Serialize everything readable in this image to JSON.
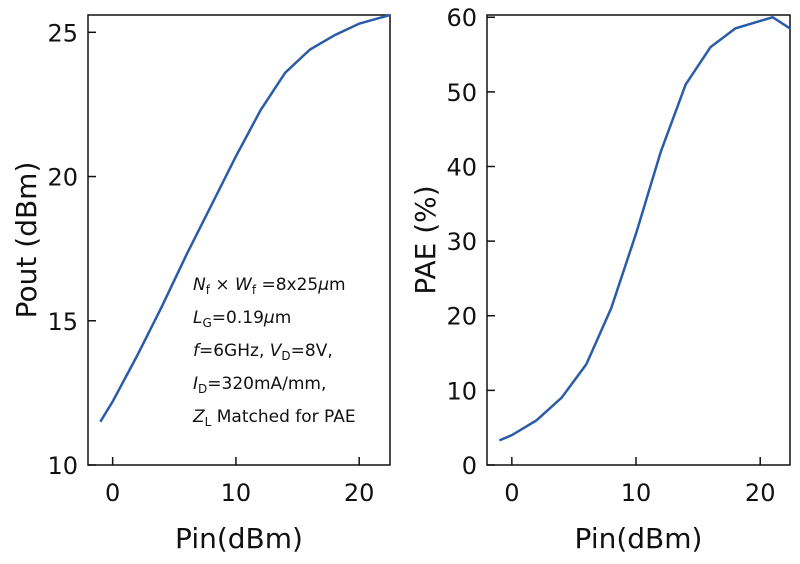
{
  "chart_data": [
    {
      "type": "line",
      "xlabel": "Pin(dBm)",
      "ylabel": "Pout (dBm)",
      "xlim": [
        -2,
        22.5
      ],
      "ylim": [
        10,
        25.6
      ],
      "xticks": [
        0,
        10,
        20
      ],
      "yticks": [
        10,
        15,
        20,
        25
      ],
      "series": [
        {
          "color": "#2a5ca8",
          "x": [
            -1,
            0,
            2,
            4,
            6,
            8,
            10,
            12,
            14,
            16,
            18,
            20,
            22.5
          ],
          "values": [
            11.5,
            12.2,
            13.8,
            15.5,
            17.3,
            19.0,
            20.7,
            22.3,
            23.6,
            24.4,
            24.9,
            25.3,
            25.6
          ]
        }
      ],
      "annotation": [
        [
          {
            "text": "N",
            "style": "italic"
          },
          {
            "text": "f",
            "style": "sub"
          },
          {
            "text": " × "
          },
          {
            "text": "W",
            "style": "italic"
          },
          {
            "text": "f",
            "style": "sub"
          },
          {
            "text": " =8x25"
          },
          {
            "text": "μ",
            "style": "italic"
          },
          {
            "text": "m"
          }
        ],
        [
          {
            "text": "L",
            "style": "italic"
          },
          {
            "text": "G",
            "style": "sub"
          },
          {
            "text": "=0.19"
          },
          {
            "text": "μ",
            "style": "italic"
          },
          {
            "text": "m"
          }
        ],
        [
          {
            "text": "f",
            "style": "italic"
          },
          {
            "text": "=6GHz,   "
          },
          {
            "text": "V",
            "style": "italic"
          },
          {
            "text": "D",
            "style": "sub"
          },
          {
            "text": "=8V,"
          }
        ],
        [
          {
            "text": "I",
            "style": "italic"
          },
          {
            "text": "D",
            "style": "sub"
          },
          {
            "text": "=320mA/mm,"
          }
        ],
        [
          {
            "text": "Z",
            "style": "italic"
          },
          {
            "text": "L",
            "style": "sub"
          },
          {
            "text": " Matched for PAE"
          }
        ]
      ]
    },
    {
      "type": "line",
      "xlabel": "Pin(dBm)",
      "ylabel": "PAE (%)",
      "xlim": [
        -2,
        22.4
      ],
      "ylim": [
        0,
        60.3
      ],
      "xticks": [
        0,
        10,
        20
      ],
      "yticks": [
        0,
        10,
        20,
        30,
        40,
        50,
        60
      ],
      "series": [
        {
          "color": "#2a5ca8",
          "x": [
            -1,
            0,
            2,
            4,
            6,
            8,
            10,
            12,
            14,
            16,
            18,
            20,
            21,
            22.4
          ],
          "values": [
            3.3,
            4,
            6,
            9,
            13.5,
            21,
            31,
            42,
            51,
            56,
            58.5,
            59.5,
            60,
            58.5
          ]
        }
      ]
    }
  ]
}
